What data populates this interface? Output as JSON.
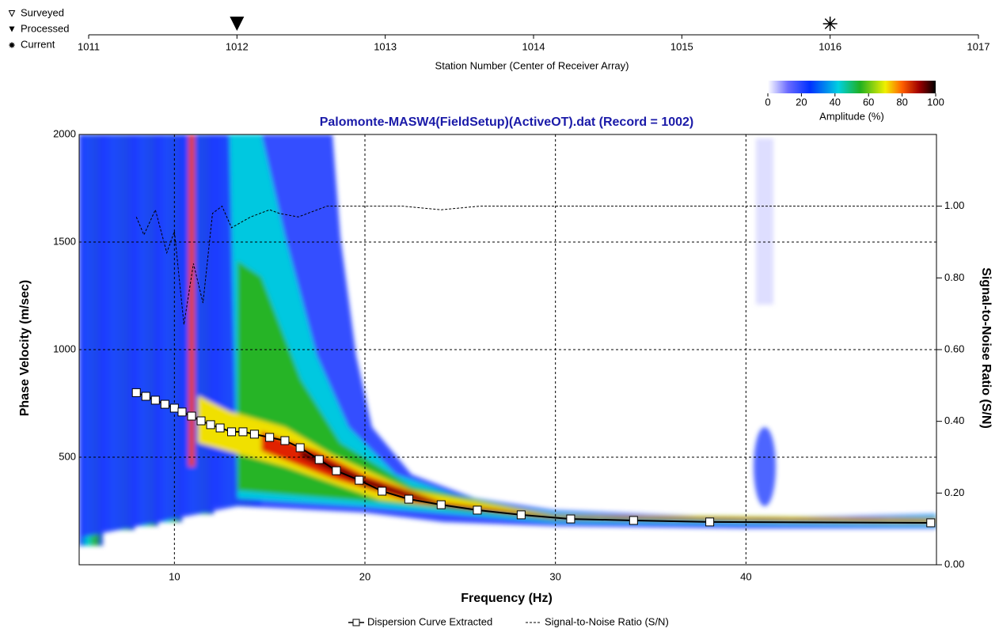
{
  "chart_data": [
    {
      "type": "strip",
      "xlabel": "Station Number (Center of Receiver Array)",
      "xlim": [
        1011,
        1017
      ],
      "xticks": [
        1011,
        1012,
        1013,
        1014,
        1015,
        1016,
        1017
      ],
      "series": [
        {
          "name": "Surveyed",
          "values": []
        },
        {
          "name": "Processed",
          "values": [
            1012
          ]
        },
        {
          "name": "Current",
          "values": [
            1016
          ]
        }
      ]
    },
    {
      "type": "line",
      "title": "Palomonte-MASW4(FieldSetup)(ActiveOT).dat (Record = 1002)",
      "xlabel": "Frequency (Hz)",
      "ylabel": "Phase Velocity (m/sec)",
      "y2label": "Signal-to-Noise Ratio (S/N)",
      "xlim": [
        5,
        50
      ],
      "xticks": [
        10,
        20,
        30,
        40
      ],
      "ylim": [
        0,
        2000
      ],
      "yticks": [
        500,
        1000,
        1500,
        2000
      ],
      "y2lim": [
        0,
        1.2
      ],
      "y2ticks": [
        {
          "value": 0,
          "label": "0.00"
        },
        {
          "value": 0.2,
          "label": "0.20"
        },
        {
          "value": 0.4,
          "label": "0.40"
        },
        {
          "value": 0.6,
          "label": "0.60"
        },
        {
          "value": 0.8,
          "label": "0.80"
        },
        {
          "value": 1,
          "label": "1.00"
        }
      ],
      "grid": true,
      "colorbar": {
        "label": "Amplitude (%)",
        "lim": [
          0,
          100
        ],
        "ticks": [
          0,
          20,
          40,
          60,
          80,
          100
        ]
      },
      "series": [
        {
          "name": "Dispersion Curve Extracted",
          "color": "#000000",
          "x": [
            8.0,
            8.5,
            9.0,
            9.5,
            10.0,
            10.4,
            10.9,
            11.4,
            11.9,
            12.4,
            13.0,
            13.6,
            14.2,
            15.0,
            15.8,
            16.6,
            17.6,
            18.5,
            19.7,
            20.9,
            22.3,
            24.0,
            25.9,
            28.2,
            30.8,
            34.1,
            38.1,
            49.7
          ],
          "values": [
            800,
            783,
            765,
            746,
            728,
            710,
            691,
            669,
            651,
            636,
            618,
            618,
            607,
            592,
            577,
            544,
            489,
            437,
            393,
            342,
            305,
            279,
            254,
            232,
            213,
            206,
            199,
            195
          ]
        },
        {
          "name": "Signal-to-Noise Ratio (S/N)",
          "color": "#000000",
          "axis": "y2",
          "x": [
            8.0,
            8.4,
            9.0,
            9.6,
            10.0,
            10.5,
            11.0,
            11.5,
            12.0,
            12.5,
            13.0,
            14.0,
            15.0,
            15.5,
            16.5,
            17.5,
            18.0,
            22,
            24,
            26,
            49.9
          ],
          "values": [
            0.97,
            0.92,
            0.99,
            0.87,
            0.93,
            0.67,
            0.84,
            0.73,
            0.98,
            1.0,
            0.94,
            0.97,
            0.99,
            0.98,
            0.97,
            0.99,
            1.0,
            1.0,
            0.99,
            1.0,
            1.0
          ]
        }
      ]
    }
  ]
}
